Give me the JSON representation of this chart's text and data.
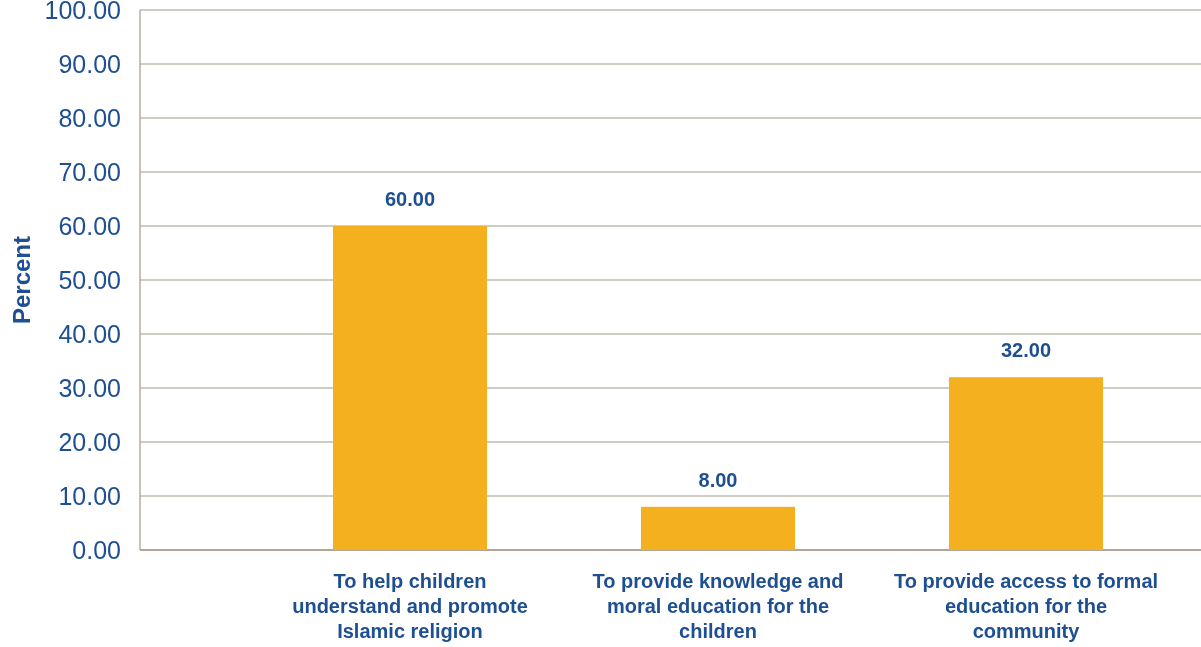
{
  "chart_data": {
    "type": "bar",
    "ylabel": "Percent",
    "categories": [
      "To help children understand and promote Islamic religion",
      "To provide knowledge and moral education for the children",
      "To provide access to formal education for the community"
    ],
    "values": [
      60,
      8,
      32
    ],
    "value_labels": [
      "60.00",
      "8.00",
      "32.00"
    ],
    "color": "#f4b01e",
    "ylim": [
      0,
      100
    ],
    "yticks": [
      {
        "value": 0,
        "label": "0.00"
      },
      {
        "value": 10,
        "label": "10.00"
      },
      {
        "value": 20,
        "label": "20.00"
      },
      {
        "value": 30,
        "label": "30.00"
      },
      {
        "value": 40,
        "label": "40.00"
      },
      {
        "value": 50,
        "label": "50.00"
      },
      {
        "value": 60,
        "label": "60.00"
      },
      {
        "value": 70,
        "label": "70.00"
      },
      {
        "value": 80,
        "label": "80.00"
      },
      {
        "value": 90,
        "label": "90.00"
      },
      {
        "value": 100,
        "label": "100.00"
      }
    ],
    "grid": "y"
  }
}
